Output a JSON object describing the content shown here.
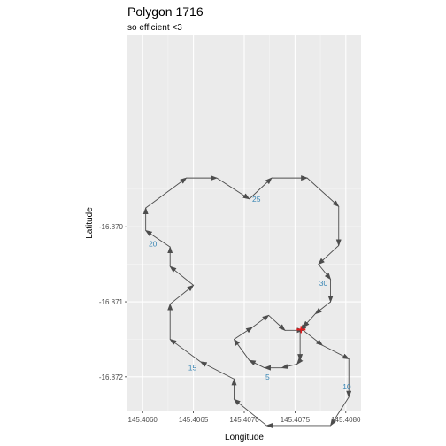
{
  "chart_data": {
    "type": "path",
    "title": "Polygon 1716",
    "subtitle": "so efficient <3",
    "xlabel": "Longitude",
    "ylabel": "Latitude",
    "xlim": [
      145.40585,
      145.40815
    ],
    "ylim": [
      -16.87245,
      -16.86745
    ],
    "x_ticks": [
      {
        "value": 145.406,
        "label": "145.4060"
      },
      {
        "value": 145.4065,
        "label": "145.4065"
      },
      {
        "value": 145.407,
        "label": "145.4070"
      },
      {
        "value": 145.4075,
        "label": "145.4075"
      },
      {
        "value": 145.408,
        "label": "145.4080"
      }
    ],
    "y_ticks": [
      {
        "value": -16.87,
        "label": "-16.870"
      },
      {
        "value": -16.871,
        "label": "-16.871"
      },
      {
        "value": -16.872,
        "label": "-16.872"
      }
    ],
    "path_color": "#4d4d4d",
    "label_color": "#3a86b4",
    "marker_color": "#e41a1c",
    "grid": true,
    "background": "#ebebeb",
    "points": [
      {
        "x": 145.40755,
        "y": -16.87138
      },
      {
        "x": 145.40755,
        "y": -16.87178
      },
      {
        "x": 145.40752,
        "y": -16.87183
      },
      {
        "x": 145.40737,
        "y": -16.87188
      },
      {
        "x": 145.4072,
        "y": -16.87188
      },
      {
        "x": 145.40705,
        "y": -16.87178
      },
      {
        "x": 145.4069,
        "y": -16.8715
      },
      {
        "x": 145.40708,
        "y": -16.87134
      },
      {
        "x": 145.40724,
        "y": -16.87118
      },
      {
        "x": 145.4074,
        "y": -16.87138
      },
      {
        "x": 145.40758,
        "y": -16.87138
      },
      {
        "x": 145.40777,
        "y": -16.87158
      },
      {
        "x": 145.40803,
        "y": -16.87176
      },
      {
        "x": 145.40803,
        "y": -16.87227
      },
      {
        "x": 145.40785,
        "y": -16.87265
      },
      {
        "x": 145.40722,
        "y": -16.87265
      },
      {
        "x": 145.4069,
        "y": -16.8723
      },
      {
        "x": 145.4069,
        "y": -16.87203
      },
      {
        "x": 145.40657,
        "y": -16.8718
      },
      {
        "x": 145.40627,
        "y": -16.8715
      },
      {
        "x": 145.40627,
        "y": -16.87103
      },
      {
        "x": 145.4065,
        "y": -16.87078
      },
      {
        "x": 145.40627,
        "y": -16.87053
      },
      {
        "x": 145.40627,
        "y": -16.87027
      },
      {
        "x": 145.40603,
        "y": -16.87005
      },
      {
        "x": 145.40603,
        "y": -16.86975
      },
      {
        "x": 145.40643,
        "y": -16.86935
      },
      {
        "x": 145.40673,
        "y": -16.86935
      },
      {
        "x": 145.40705,
        "y": -16.86963
      },
      {
        "x": 145.40727,
        "y": -16.86935
      },
      {
        "x": 145.40762,
        "y": -16.86935
      },
      {
        "x": 145.40793,
        "y": -16.86973
      },
      {
        "x": 145.40793,
        "y": -16.87025
      },
      {
        "x": 145.40773,
        "y": -16.8705
      },
      {
        "x": 145.40785,
        "y": -16.8707
      },
      {
        "x": 145.40785,
        "y": -16.871
      },
      {
        "x": 145.4077,
        "y": -16.87116
      },
      {
        "x": 145.40758,
        "y": -16.87134
      }
    ],
    "segment_labels": [
      {
        "text": "5",
        "x": 145.40723,
        "y": -16.872
      },
      {
        "text": "10",
        "x": 145.40801,
        "y": -16.87213
      },
      {
        "text": "15",
        "x": 145.40649,
        "y": -16.87188
      },
      {
        "text": "20",
        "x": 145.4061,
        "y": -16.87023
      },
      {
        "text": "25",
        "x": 145.40712,
        "y": -16.86963
      },
      {
        "text": "30",
        "x": 145.40778,
        "y": -16.87075
      }
    ],
    "marker": {
      "x": 145.40756,
      "y": -16.87137
    }
  }
}
